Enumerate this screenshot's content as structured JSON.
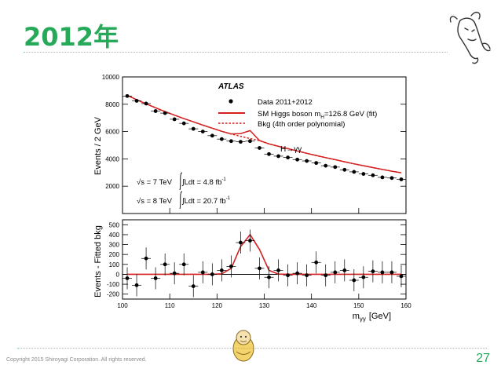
{
  "slide": {
    "title": "2012年",
    "copyright": "Copyright 2015 Shiroyagi Corporation. All rights reserved.",
    "page_number": "27"
  },
  "colors": {
    "accent": "#27a95a",
    "signal": "#d62020",
    "data": "#000000"
  },
  "icons": [
    "goat-logo-icon",
    "mascot-icon"
  ],
  "chart_data": [
    {
      "type": "scatter",
      "panel": "top",
      "experiment_label": "ATLAS",
      "ylabel": "Events / 2 GeV",
      "xlim": [
        100,
        160
      ],
      "ylim": [
        0,
        10000
      ],
      "yticks": [
        2000,
        4000,
        6000,
        8000,
        10000
      ],
      "grid": false,
      "legend_placement": "top-right",
      "legend": {
        "data": "Data 2011+2012",
        "signal": "SM Higgs boson m",
        "signal_sub": "H",
        "signal_rest": "=126.8 GeV (fit)",
        "bkg": "Bkg (4th order polynomial)"
      },
      "channel_label": "H→γγ",
      "lumi_labels": {
        "sqrt7": "√s = 7 TeV",
        "int7": "∫Ldt = 4.8 fb",
        "sqrt8": "√s = 8 TeV",
        "int8": "∫Ldt = 20.7 fb",
        "inverse": "-1"
      },
      "x": [
        101,
        103,
        105,
        107,
        109,
        111,
        113,
        115,
        117,
        119,
        121,
        123,
        125,
        127,
        129,
        131,
        133,
        135,
        137,
        139,
        141,
        143,
        145,
        147,
        149,
        151,
        153,
        155,
        157,
        159
      ],
      "series": [
        {
          "name": "Data 2011+2012",
          "values": [
            8600,
            8250,
            8050,
            7500,
            7350,
            6900,
            6600,
            6200,
            6000,
            5700,
            5450,
            5300,
            5250,
            5300,
            4800,
            4350,
            4200,
            4100,
            3950,
            3850,
            3700,
            3500,
            3400,
            3200,
            3050,
            2900,
            2800,
            2650,
            2600,
            2500
          ]
        },
        {
          "name": "SM Higgs boson m=126.8 GeV (fit)",
          "values": [
            8650,
            8330,
            8030,
            7740,
            7460,
            7200,
            6950,
            6710,
            6470,
            6250,
            6020,
            5830,
            5850,
            6070,
            5340,
            5100,
            4920,
            4750,
            4580,
            4410,
            4250,
            4090,
            3940,
            3790,
            3640,
            3500,
            3360,
            3230,
            3100,
            2980
          ]
        },
        {
          "name": "Bkg (4th order polynomial)",
          "values": [
            8650,
            8330,
            8030,
            7740,
            7460,
            7200,
            6950,
            6710,
            6470,
            6250,
            6020,
            5820,
            5650,
            5490,
            5340,
            5100,
            4920,
            4750,
            4580,
            4410,
            4250,
            4090,
            3940,
            3790,
            3640,
            3500,
            3360,
            3230,
            3100,
            2980
          ]
        }
      ]
    },
    {
      "type": "scatter",
      "panel": "bottom",
      "xlabel": "m",
      "xlabel_sub": "γγ",
      "xlabel_unit": "[GeV]",
      "ylabel": "Events - Fitted bkg",
      "xlim": [
        100,
        160
      ],
      "ylim": [
        -250,
        550
      ],
      "xticks": [
        100,
        110,
        120,
        130,
        140,
        150,
        160
      ],
      "yticks": [
        -200,
        -100,
        0,
        100,
        200,
        300,
        400,
        500
      ],
      "x": [
        101,
        103,
        105,
        107,
        109,
        111,
        113,
        115,
        117,
        119,
        121,
        123,
        125,
        127,
        129,
        131,
        133,
        135,
        137,
        139,
        141,
        143,
        145,
        147,
        149,
        151,
        153,
        155,
        157,
        159
      ],
      "series": [
        {
          "name": "Data 2011+2012",
          "values": [
            -40,
            -110,
            160,
            -40,
            100,
            10,
            100,
            -120,
            20,
            0,
            40,
            80,
            320,
            340,
            60,
            -30,
            40,
            -10,
            10,
            -10,
            120,
            -10,
            20,
            40,
            -60,
            -30,
            30,
            20,
            20,
            -20
          ]
        },
        {
          "name": "SM Higgs boson m=126.8 GeV (fit)",
          "values": [
            0,
            0,
            0,
            0,
            0,
            0,
            0,
            0,
            0,
            0,
            5,
            60,
            280,
            400,
            250,
            40,
            2,
            0,
            0,
            0,
            0,
            0,
            0,
            0,
            0,
            0,
            0,
            0,
            0,
            0
          ]
        }
      ]
    }
  ]
}
